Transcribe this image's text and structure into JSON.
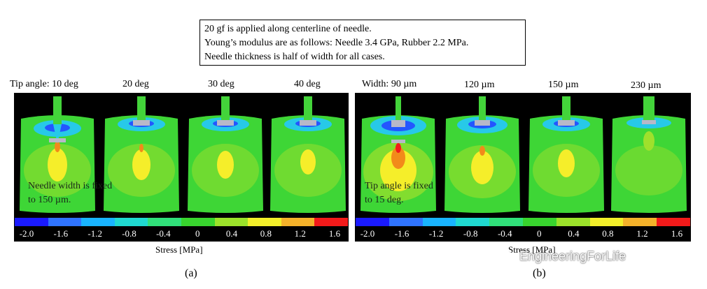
{
  "notes": {
    "line1": "20 gf is applied along centerline of needle.",
    "line2": "Young’s modulus are as follows: Needle 3.4 GPa, Rubber 2.2 MPa.",
    "line3": "Needle thickness is half of width for all cases."
  },
  "panel_a": {
    "labels": [
      "Tip angle: 10 deg",
      "20 deg",
      "30 deg",
      "40 deg"
    ],
    "overlay_line1": "Needle width is fixed",
    "overlay_line2": "to 150 µm.",
    "stress_label": "Stress [MPa]",
    "sublabel": "(a)"
  },
  "panel_b": {
    "labels": [
      "Width: 90 µm",
      "120 µm",
      "150 µm",
      "230 µm"
    ],
    "overlay_line1": "Tip angle is fixed",
    "overlay_line2": "to 15 deg.",
    "stress_label": "Stress [MPa]",
    "sublabel": "(b)"
  },
  "colorbar": {
    "ticks": [
      "-2.0",
      "-1.6",
      "-1.2",
      "-0.8",
      "-0.4",
      "0",
      "0.4",
      "0.8",
      "1.2",
      "1.6"
    ],
    "colors": [
      "#1a1aff",
      "#2f74ff",
      "#19b4ff",
      "#1fd9d0",
      "#30e07a",
      "#38d52e",
      "#9be22a",
      "#f2ef2a",
      "#f4b22a",
      "#f21a1a"
    ]
  },
  "watermark": {
    "text": "EngineeringForLife",
    "icon": "wechat-icon"
  },
  "colors": {
    "field": "#3ed636",
    "inner": "#9fe02c",
    "hot": "#f5ee2a",
    "peak": "#f28a1a",
    "needle": "#43d43a",
    "cool": "#27c9e8",
    "deep": "#2456ff"
  }
}
